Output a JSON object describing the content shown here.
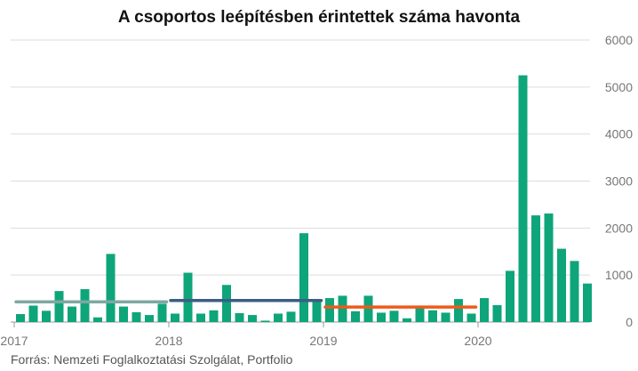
{
  "chart_data": {
    "type": "bar",
    "title": "A csoportos leépítésben érintettek száma havonta",
    "source": "Forrás: Nemzeti Foglalkoztatási Szolgálat, Portfolio",
    "xlabel": "",
    "ylabel": "",
    "ylim": [
      0,
      6000
    ],
    "yticks": [
      0,
      1000,
      2000,
      3000,
      4000,
      5000,
      6000
    ],
    "ytick_labels": [
      "0",
      "1000",
      "2000",
      "3000",
      "4000",
      "5000",
      "6000"
    ],
    "y_axis_side": "right",
    "grid": true,
    "year_labels": [
      {
        "label": "2017",
        "at_month_index": 0
      },
      {
        "label": "2018",
        "at_month_index": 12
      },
      {
        "label": "2019",
        "at_month_index": 24
      },
      {
        "label": "2020",
        "at_month_index": 36
      }
    ],
    "categories": [
      "2017-01",
      "2017-02",
      "2017-03",
      "2017-04",
      "2017-05",
      "2017-06",
      "2017-07",
      "2017-08",
      "2017-09",
      "2017-10",
      "2017-11",
      "2017-12",
      "2018-01",
      "2018-02",
      "2018-03",
      "2018-04",
      "2018-05",
      "2018-06",
      "2018-07",
      "2018-08",
      "2018-09",
      "2018-10",
      "2018-11",
      "2018-12",
      "2019-01",
      "2019-02",
      "2019-03",
      "2019-04",
      "2019-05",
      "2019-06",
      "2019-07",
      "2019-08",
      "2019-09",
      "2019-10",
      "2019-11",
      "2019-12",
      "2020-01",
      "2020-02",
      "2020-03",
      "2020-04",
      "2020-05",
      "2020-06",
      "2020-07",
      "2020-08",
      "2020-09"
    ],
    "series": [
      {
        "values": [
          170,
          350,
          240,
          660,
          330,
          700,
          100,
          1450,
          330,
          210,
          150,
          390,
          180,
          1050,
          180,
          250,
          790,
          190,
          150,
          30,
          180,
          220,
          1890,
          430,
          510,
          560,
          230,
          560,
          200,
          240,
          80,
          300,
          250,
          200,
          490,
          180,
          510,
          360,
          1090,
          5250,
          2270,
          2310,
          1560,
          1300,
          820
        ],
        "color": "#0ea57a"
      }
    ],
    "reference_lines": [
      {
        "start_month_index": 0,
        "end_month_index": 11,
        "value": 430,
        "color": "#7fa8a2"
      },
      {
        "start_month_index": 12,
        "end_month_index": 23,
        "value": 460,
        "color": "#3c5e85"
      },
      {
        "start_month_index": 24,
        "end_month_index": 35,
        "value": 320,
        "color": "#ee5a1c"
      }
    ]
  }
}
